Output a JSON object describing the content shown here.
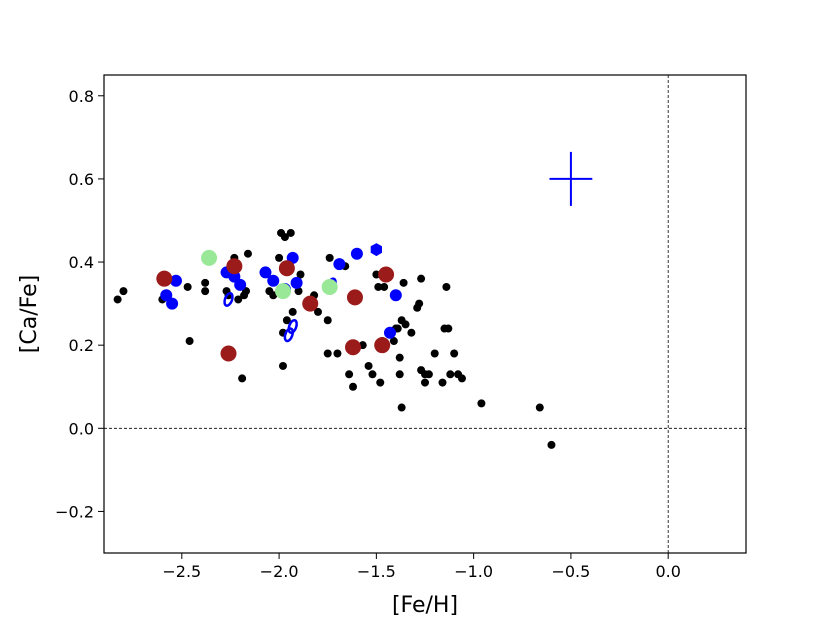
{
  "chart_data": {
    "type": "scatter",
    "title": "",
    "xlabel": "[Fe/H]",
    "ylabel": "[Ca/Fe]",
    "xlim": [
      -2.9,
      0.4
    ],
    "ylim": [
      -0.3,
      0.85
    ],
    "xticks": [
      -2.5,
      -2.0,
      -1.5,
      -1.0,
      -0.5,
      0.0
    ],
    "xtick_labels": [
      "−2.5",
      "−2.0",
      "−1.5",
      "−1.0",
      "−0.5",
      "0.0"
    ],
    "yticks": [
      -0.2,
      0.0,
      0.2,
      0.4,
      0.6,
      0.8
    ],
    "ytick_labels": [
      "−0.2",
      "0.0",
      "0.2",
      "0.4",
      "0.6",
      "0.8"
    ],
    "reference_lines": {
      "x": 0.0,
      "y": 0.0,
      "style": "dashed"
    },
    "error_bar": {
      "x": -0.5,
      "y": 0.6,
      "xerr": 0.11,
      "yerr": 0.065,
      "color": "#0000ff"
    },
    "series": [
      {
        "marker": "small-dot",
        "color": "#000000",
        "points": [
          [
            -2.83,
            0.31
          ],
          [
            -2.8,
            0.33
          ],
          [
            -2.6,
            0.31
          ],
          [
            -2.46,
            0.21
          ],
          [
            -2.47,
            0.34
          ],
          [
            -2.38,
            0.33
          ],
          [
            -2.38,
            0.35
          ],
          [
            -2.27,
            0.33
          ],
          [
            -2.26,
            0.32
          ],
          [
            -2.23,
            0.41
          ],
          [
            -2.21,
            0.31
          ],
          [
            -2.18,
            0.32
          ],
          [
            -2.17,
            0.33
          ],
          [
            -2.19,
            0.12
          ],
          [
            -2.16,
            0.42
          ],
          [
            -2.05,
            0.33
          ],
          [
            -2.03,
            0.32
          ],
          [
            -2.0,
            0.41
          ],
          [
            -1.99,
            0.47
          ],
          [
            -1.97,
            0.46
          ],
          [
            -1.98,
            0.23
          ],
          [
            -1.98,
            0.15
          ],
          [
            -1.96,
            0.26
          ],
          [
            -1.94,
            0.47
          ],
          [
            -1.93,
            0.28
          ],
          [
            -1.9,
            0.33
          ],
          [
            -1.89,
            0.37
          ],
          [
            -1.82,
            0.32
          ],
          [
            -1.8,
            0.28
          ],
          [
            -1.75,
            0.18
          ],
          [
            -1.75,
            0.26
          ],
          [
            -1.74,
            0.41
          ],
          [
            -1.7,
            0.18
          ],
          [
            -1.66,
            0.39
          ],
          [
            -1.64,
            0.13
          ],
          [
            -1.62,
            0.1
          ],
          [
            -1.62,
            0.31
          ],
          [
            -1.57,
            0.2
          ],
          [
            -1.54,
            0.15
          ],
          [
            -1.52,
            0.13
          ],
          [
            -1.5,
            0.37
          ],
          [
            -1.49,
            0.34
          ],
          [
            -1.48,
            0.11
          ],
          [
            -1.47,
            0.21
          ],
          [
            -1.46,
            0.34
          ],
          [
            -1.43,
            0.23
          ],
          [
            -1.41,
            0.21
          ],
          [
            -1.4,
            0.24
          ],
          [
            -1.39,
            0.24
          ],
          [
            -1.38,
            0.13
          ],
          [
            -1.38,
            0.17
          ],
          [
            -1.37,
            0.26
          ],
          [
            -1.37,
            0.05
          ],
          [
            -1.36,
            0.35
          ],
          [
            -1.35,
            0.25
          ],
          [
            -1.32,
            0.23
          ],
          [
            -1.29,
            0.29
          ],
          [
            -1.28,
            0.3
          ],
          [
            -1.27,
            0.36
          ],
          [
            -1.27,
            0.14
          ],
          [
            -1.25,
            0.11
          ],
          [
            -1.25,
            0.13
          ],
          [
            -1.23,
            0.13
          ],
          [
            -1.2,
            0.18
          ],
          [
            -1.16,
            0.11
          ],
          [
            -1.15,
            0.24
          ],
          [
            -1.14,
            0.34
          ],
          [
            -1.13,
            0.24
          ],
          [
            -1.12,
            0.13
          ],
          [
            -1.1,
            0.18
          ],
          [
            -1.08,
            0.13
          ],
          [
            -1.06,
            0.12
          ],
          [
            -0.96,
            0.06
          ],
          [
            -0.66,
            0.05
          ],
          [
            -0.6,
            -0.04
          ]
        ]
      },
      {
        "marker": "filled-circle",
        "color": "#0000ff",
        "points": [
          [
            -2.58,
            0.32
          ],
          [
            -2.55,
            0.3
          ],
          [
            -2.53,
            0.355
          ],
          [
            -2.27,
            0.375
          ],
          [
            -2.23,
            0.365
          ],
          [
            -2.2,
            0.345
          ],
          [
            -2.07,
            0.375
          ],
          [
            -2.03,
            0.355
          ],
          [
            -1.97,
            0.335
          ],
          [
            -1.93,
            0.41
          ],
          [
            -1.91,
            0.35
          ],
          [
            -1.69,
            0.395
          ],
          [
            -1.6,
            0.42
          ],
          [
            -1.43,
            0.23
          ],
          [
            -1.4,
            0.32
          ]
        ]
      },
      {
        "marker": "blue-hexagon",
        "color": "#0000ff",
        "points": [
          [
            -1.5,
            0.43
          ]
        ]
      },
      {
        "marker": "open-ellipse",
        "color": "#0000ff",
        "points": [
          [
            -2.26,
            0.31
          ],
          [
            -1.95,
            0.225
          ],
          [
            -1.93,
            0.245
          ],
          [
            -1.73,
            0.345
          ]
        ]
      },
      {
        "marker": "large-circle",
        "color": "#98e898",
        "points": [
          [
            -2.36,
            0.41
          ],
          [
            -1.98,
            0.33
          ],
          [
            -1.74,
            0.34
          ]
        ]
      },
      {
        "marker": "large-circle",
        "color": "#9b1a1a",
        "points": [
          [
            -2.59,
            0.36
          ],
          [
            -2.26,
            0.18
          ],
          [
            -2.23,
            0.39
          ],
          [
            -1.96,
            0.385
          ],
          [
            -1.84,
            0.3
          ],
          [
            -1.62,
            0.195
          ],
          [
            -1.61,
            0.315
          ],
          [
            -1.47,
            0.2
          ],
          [
            -1.45,
            0.37
          ]
        ]
      }
    ]
  }
}
